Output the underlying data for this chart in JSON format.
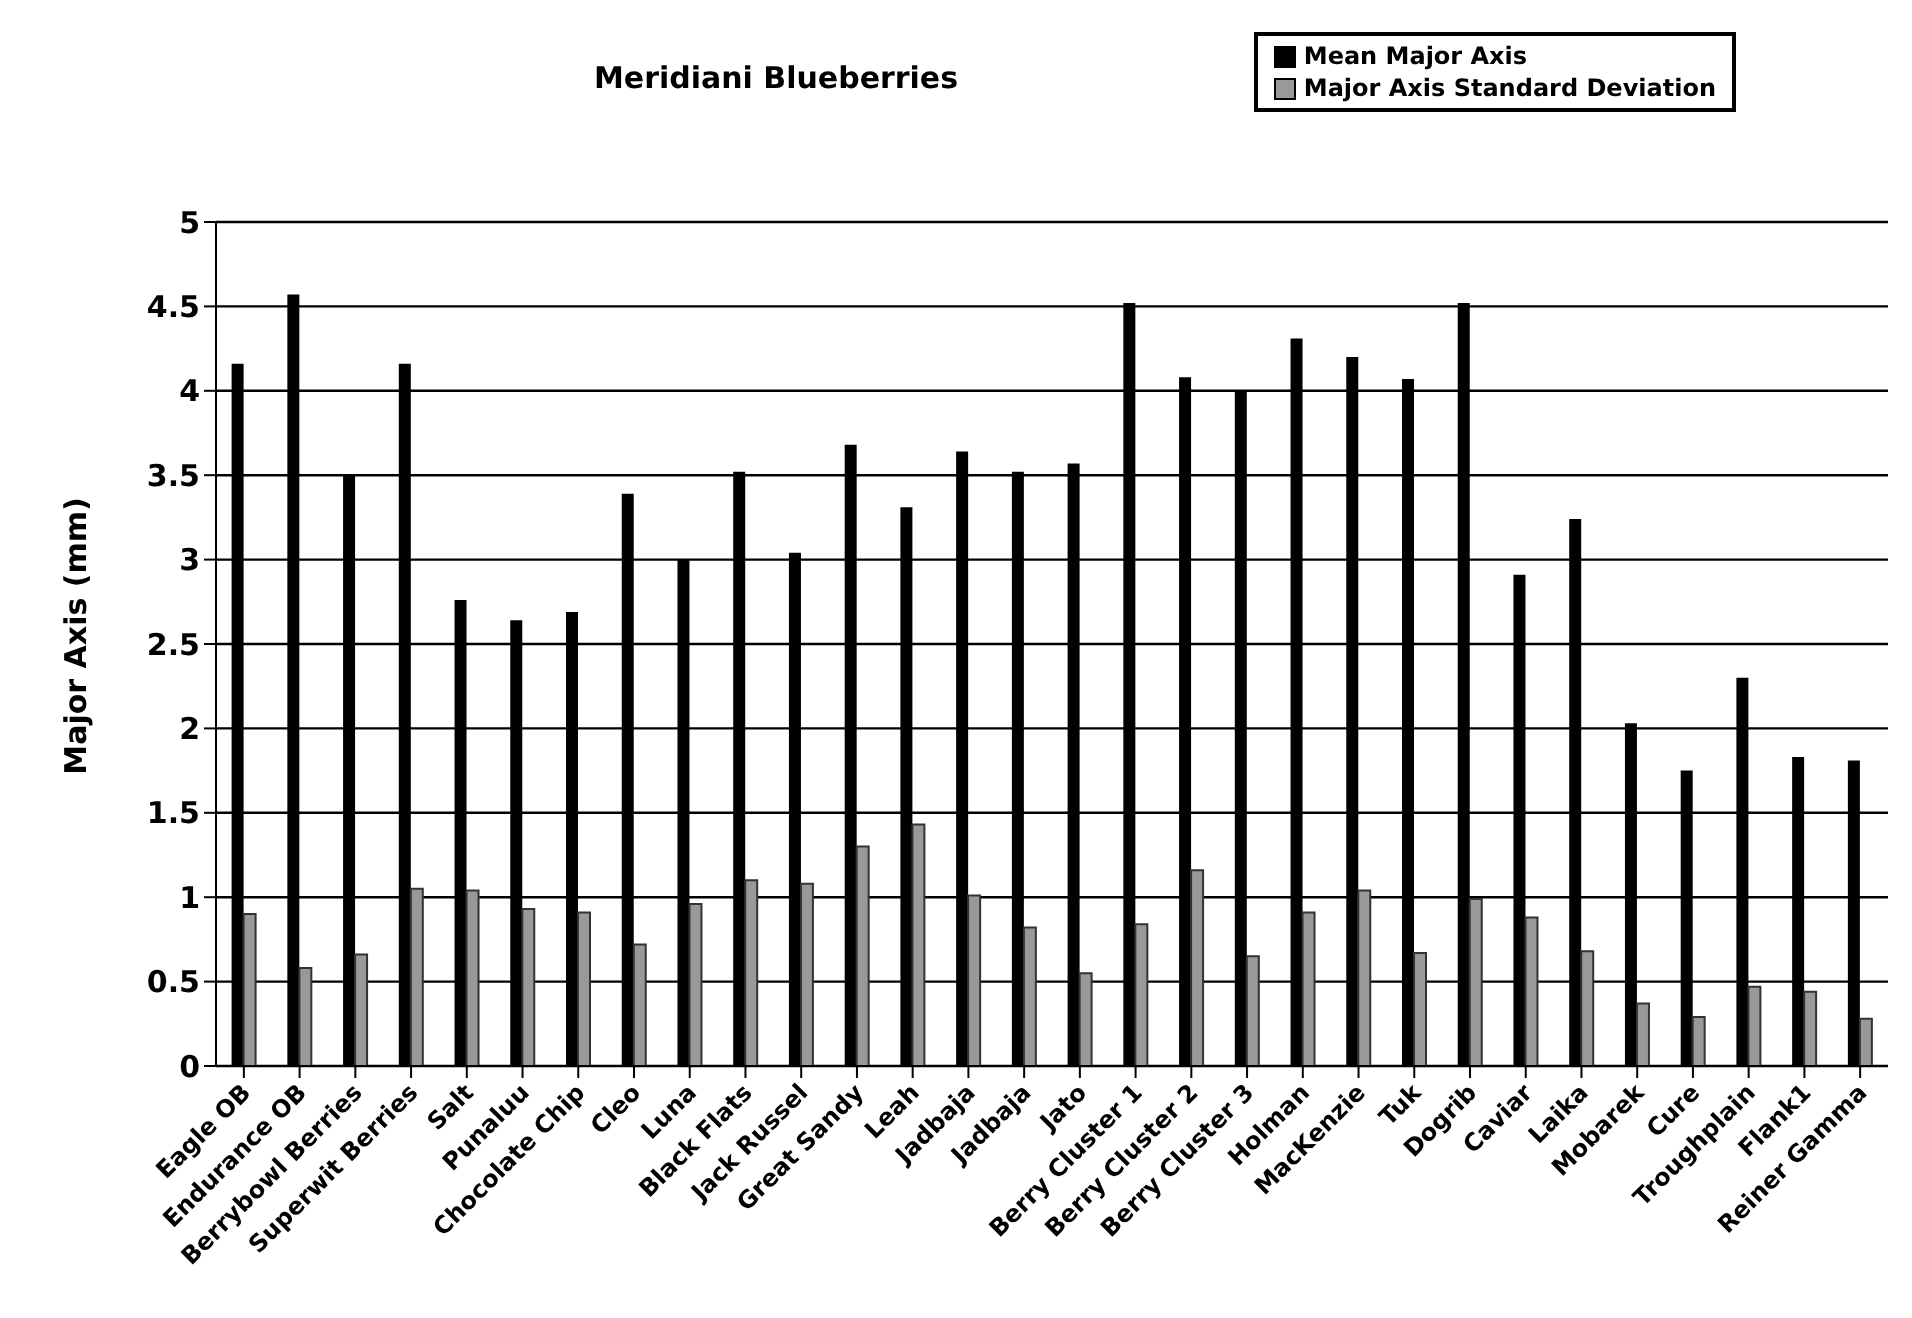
{
  "chart_data": {
    "type": "bar",
    "title": "Meridiani Blueberries",
    "ylabel": "Major Axis (mm)",
    "categories": [
      "Eagle OB",
      "Endurance OB",
      "Berrybowl Berries",
      "Superwit Berries",
      "Salt",
      "Punaluu",
      "Chocolate Chip",
      "Cleo",
      "Luna",
      "Black Flats",
      "Jack Russel",
      "Great Sandy",
      "Leah",
      "Jadbaja",
      "Jadbaja",
      "Jato",
      "Berry Cluster 1",
      "Berry Cluster 2",
      "Berry Cluster 3",
      "Holman",
      "MacKenzie",
      "Tuk",
      "Dogrib",
      "Caviar",
      "Laika",
      "Mobarek",
      "Cure",
      "Troughplain",
      "Flank1",
      "Reiner Gamma"
    ],
    "series": [
      {
        "name": "Mean Major Axis",
        "color": "#000000",
        "values": [
          4.16,
          4.57,
          3.5,
          4.16,
          2.76,
          2.64,
          2.69,
          3.39,
          3.0,
          3.52,
          3.04,
          3.68,
          3.31,
          3.64,
          3.52,
          3.57,
          4.52,
          4.08,
          4.0,
          4.31,
          4.2,
          4.07,
          4.52,
          2.91,
          3.24,
          2.03,
          1.75,
          2.3,
          1.83,
          1.81
        ]
      },
      {
        "name": "Major Axis Standard Deviation",
        "color": "#999999",
        "values": [
          0.9,
          0.58,
          0.66,
          1.05,
          1.04,
          0.93,
          0.91,
          0.72,
          0.96,
          1.1,
          1.08,
          1.3,
          1.43,
          1.01,
          0.82,
          0.55,
          0.84,
          1.16,
          0.65,
          0.91,
          1.04,
          0.67,
          0.99,
          0.88,
          0.68,
          0.37,
          0.29,
          0.47,
          0.44,
          0.28
        ]
      }
    ],
    "ylim": [
      0,
      5
    ],
    "yticks": [
      0,
      0.5,
      1,
      1.5,
      2,
      2.5,
      3,
      3.5,
      4,
      4.5,
      5
    ],
    "grid": "y",
    "legend": "top right"
  }
}
